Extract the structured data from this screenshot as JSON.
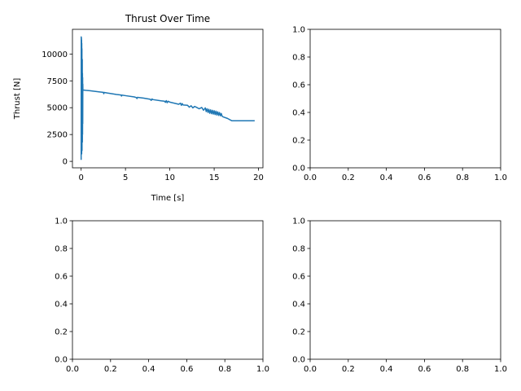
{
  "chart_data": [
    {
      "type": "line",
      "title": "Thrust Over Time",
      "xlabel": "Time [s]",
      "ylabel": "Thrust [N]",
      "xlim": [
        -0.98,
        20.5
      ],
      "ylim": [
        -600,
        12300
      ],
      "xticks": [
        0,
        5,
        10,
        15,
        20
      ],
      "yticks": [
        0,
        2500,
        5000,
        7500,
        10000
      ],
      "series_color": "#1f77b4",
      "grid": false,
      "series": [
        {
          "x": [
            0.0,
            0.01,
            0.02,
            0.03,
            0.04,
            0.05,
            0.06,
            0.07,
            0.08,
            0.09,
            0.1,
            0.11,
            0.12,
            0.13,
            0.14,
            0.15,
            0.16,
            0.17,
            0.18,
            0.19,
            0.2,
            0.22,
            0.5,
            1.0,
            2.0,
            2.5,
            2.55,
            2.6,
            3.0,
            4.0,
            4.5,
            4.55,
            4.6,
            5.0,
            6.0,
            6.2,
            6.3,
            6.35,
            7.0,
            7.8,
            7.9,
            8.0,
            8.05,
            9.0,
            9.4,
            9.5,
            9.6,
            9.7,
            9.8,
            10.0,
            11.0,
            11.2,
            11.3,
            11.4,
            11.5,
            12.0,
            12.2,
            12.4,
            12.6,
            12.8,
            13.0,
            13.3,
            13.6,
            13.8,
            14.0,
            14.1,
            14.2,
            14.3,
            14.4,
            14.5,
            14.6,
            14.7,
            14.8,
            14.9,
            15.0,
            15.1,
            15.2,
            15.3,
            15.4,
            15.5,
            15.6,
            15.7,
            15.8,
            15.9,
            16.0,
            16.5,
            17.0,
            17.5,
            18.0,
            18.5,
            19.0,
            19.5
          ],
          "y": [
            200,
            11600,
            900,
            11500,
            1200,
            11300,
            700,
            11000,
            1500,
            10500,
            1000,
            8500,
            2000,
            9500,
            1800,
            8200,
            2500,
            7800,
            3500,
            7200,
            6600,
            6650,
            6620,
            6580,
            6480,
            6430,
            6300,
            6420,
            6360,
            6230,
            6180,
            6080,
            6170,
            6120,
            6000,
            5950,
            5850,
            5960,
            5900,
            5780,
            5680,
            5820,
            5760,
            5640,
            5600,
            5500,
            5660,
            5460,
            5600,
            5520,
            5320,
            5420,
            5220,
            5380,
            5250,
            5220,
            5050,
            5180,
            4980,
            5120,
            5040,
            4900,
            5020,
            4760,
            4980,
            4640,
            4900,
            4560,
            4850,
            4480,
            4800,
            4440,
            4760,
            4400,
            4720,
            4360,
            4680,
            4320,
            4620,
            4280,
            4550,
            4240,
            4460,
            4200,
            4150,
            4000,
            3780,
            3780,
            3780,
            3780,
            3780,
            3780
          ]
        }
      ]
    },
    {
      "type": "line",
      "title": "",
      "xlim": [
        0.0,
        1.0
      ],
      "ylim": [
        0.0,
        1.0
      ],
      "xticks": [
        "0.0",
        "0.2",
        "0.4",
        "0.6",
        "0.8",
        "1.0"
      ],
      "yticks": [
        "0.0",
        "0.2",
        "0.4",
        "0.6",
        "0.8",
        "1.0"
      ],
      "series": []
    },
    {
      "type": "line",
      "title": "",
      "xlim": [
        0.0,
        1.0
      ],
      "ylim": [
        0.0,
        1.0
      ],
      "xticks": [
        "0.0",
        "0.2",
        "0.4",
        "0.6",
        "0.8",
        "1.0"
      ],
      "yticks": [
        "0.0",
        "0.2",
        "0.4",
        "0.6",
        "0.8",
        "1.0"
      ],
      "series": []
    },
    {
      "type": "line",
      "title": "",
      "xlim": [
        0.0,
        1.0
      ],
      "ylim": [
        0.0,
        1.0
      ],
      "xticks": [
        "0.0",
        "0.2",
        "0.4",
        "0.6",
        "0.8",
        "1.0"
      ],
      "yticks": [
        "0.0",
        "0.2",
        "0.4",
        "0.6",
        "0.8",
        "1.0"
      ],
      "series": []
    }
  ]
}
